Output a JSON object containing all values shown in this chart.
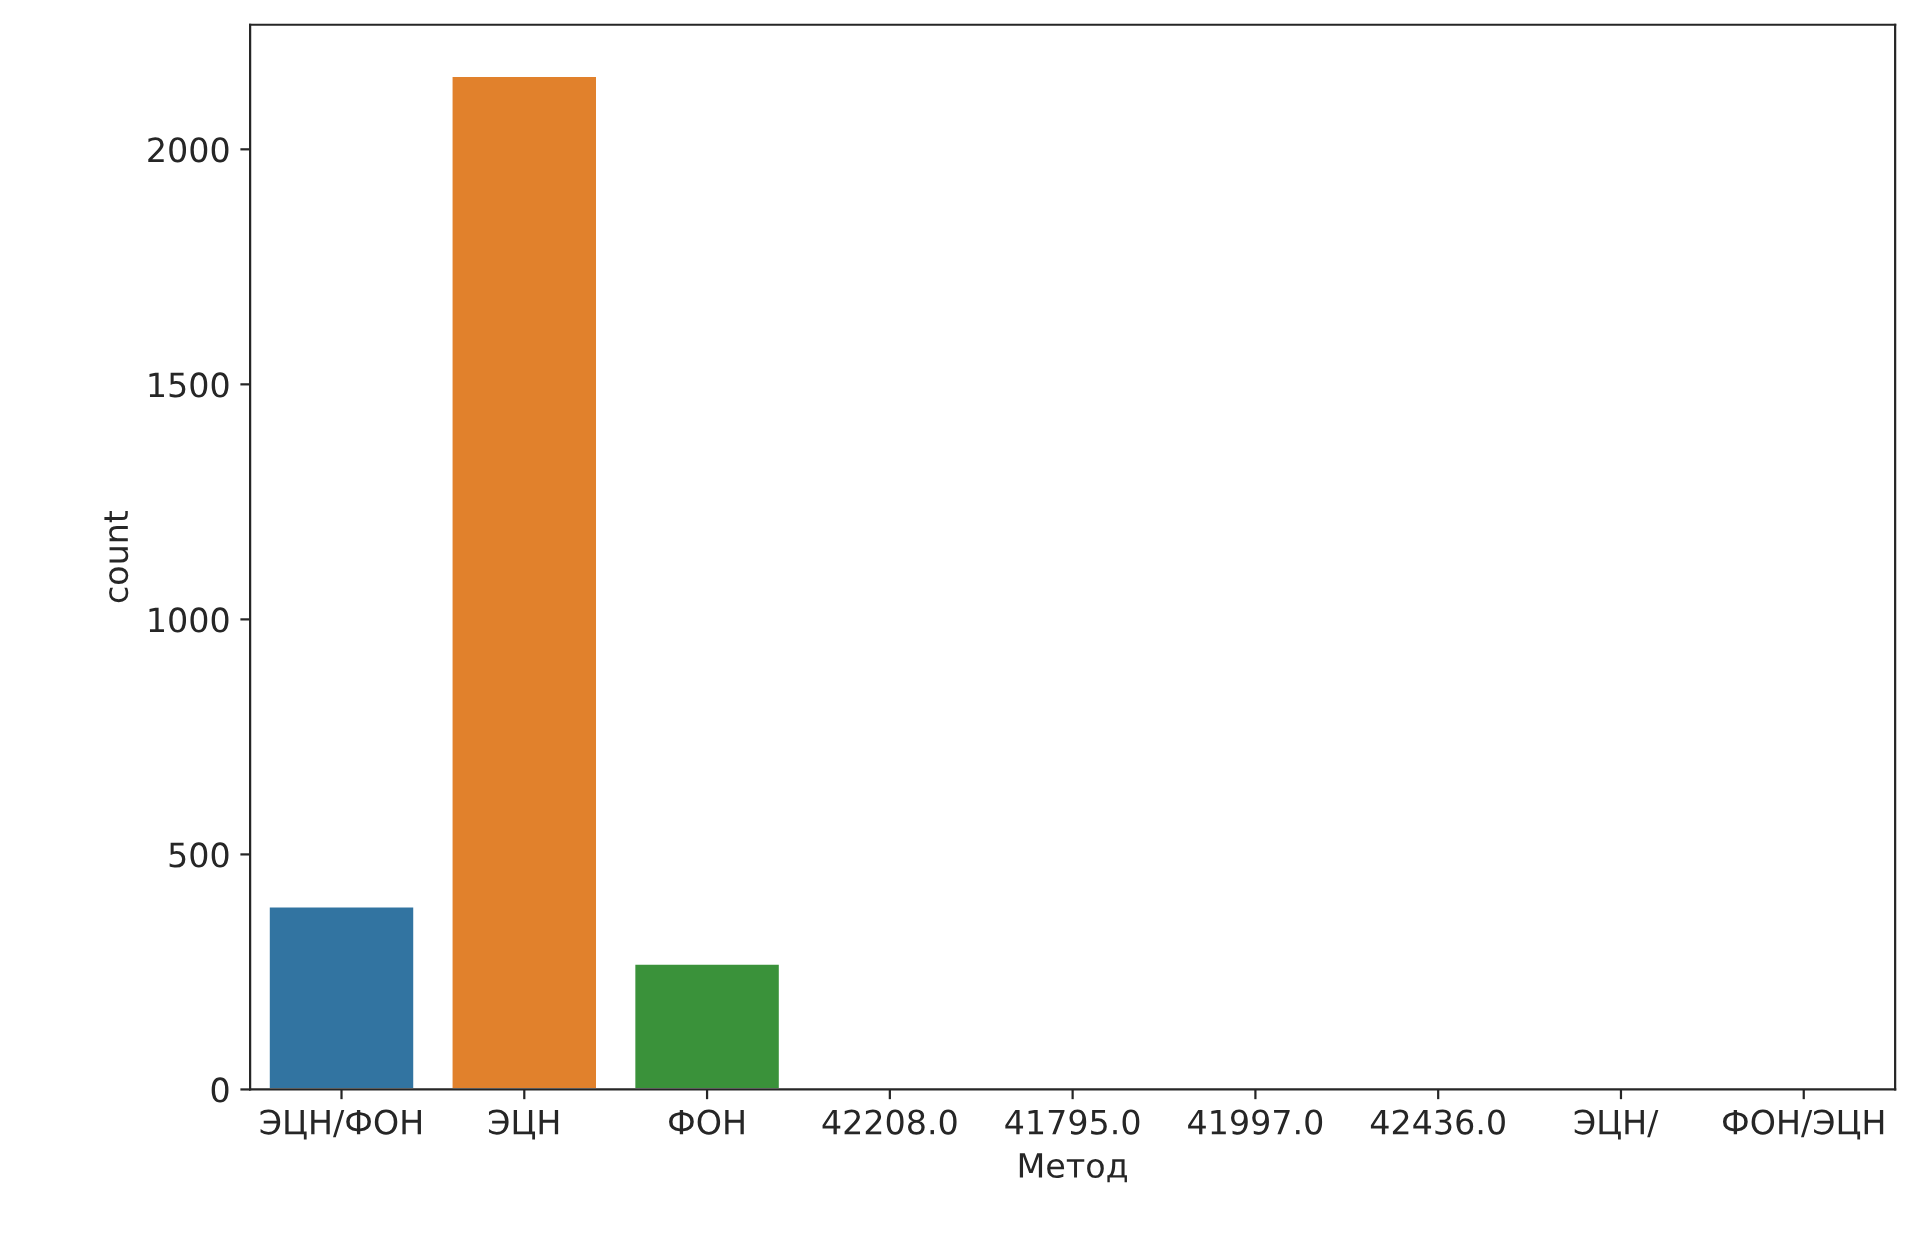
{
  "chart_data": {
    "type": "bar",
    "xlabel": "Метод",
    "ylabel": "count",
    "categories": [
      "ЭЦН/ФОН",
      "ЭЦН",
      "ФОН",
      "42208.0",
      "41795.0",
      "41997.0",
      "42436.0",
      "ЭЦН/ ",
      "ФОН/ЭЦН"
    ],
    "values": [
      390,
      2157,
      268,
      1,
      1,
      6,
      1,
      4,
      1
    ],
    "colors": [
      "#3274a1",
      "#e1812c",
      "#3a923a",
      "#c03d3e",
      "#9372b2",
      "#845b53",
      "#d684bd",
      "#7f7f7f",
      "#a9aa35"
    ],
    "ylim": [
      0,
      2265
    ],
    "yticks": [
      0,
      500,
      1000,
      1500,
      2000
    ],
    "grid": false
  }
}
